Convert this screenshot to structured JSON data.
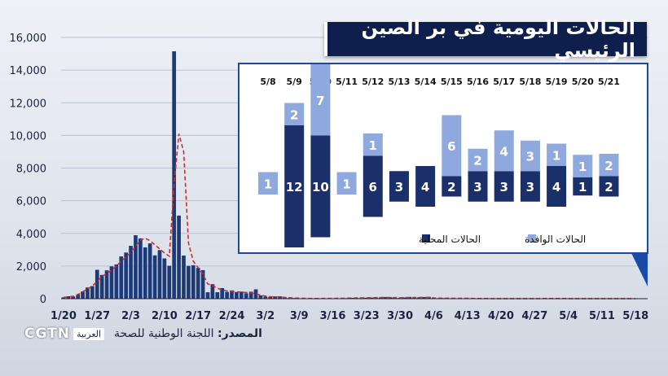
{
  "title": "الحالات اليومية في بر الصين الرئيسي",
  "source_label": "المصدر:",
  "source_text": "اللجنة الوطنية للصحة",
  "logo": {
    "brand": "CGTN",
    "sub": "العربية"
  },
  "colors": {
    "bar": "#1d3a78",
    "trend": "#d42a2a",
    "local": "#1b2f6b",
    "imported": "#8fa8dd",
    "title_bg": "#0f1f4d"
  },
  "chart_data": [
    {
      "type": "bar",
      "ylim": [
        0,
        16000
      ],
      "yticks": [
        0,
        2000,
        4000,
        6000,
        8000,
        10000,
        12000,
        14000,
        16000
      ],
      "ytick_labels": [
        "0",
        "2,000",
        "4,000",
        "6,000",
        "8,000",
        "10,000",
        "12,000",
        "14,000",
        "16,000"
      ],
      "xtick_labels": [
        "1/20",
        "1/27",
        "2/3",
        "2/10",
        "2/17",
        "2/24",
        "3/2",
        "3/9",
        "3/16",
        "3/23",
        "3/30",
        "4/6",
        "4/13",
        "4/20",
        "4/27",
        "5/4",
        "5/11",
        "5/18"
      ],
      "x_start_date": "1/20",
      "values": [
        77,
        149,
        131,
        259,
        444,
        688,
        769,
        1771,
        1459,
        1737,
        1981,
        2099,
        2589,
        2825,
        3235,
        3884,
        3694,
        3143,
        3385,
        2652,
        2973,
        2467,
        2015,
        15152,
        5090,
        2641,
        2008,
        2048,
        1888,
        1749,
        394,
        889,
        397,
        648,
        409,
        508,
        406,
        433,
        327,
        427,
        573,
        202,
        125,
        119,
        139,
        143,
        99,
        44,
        40,
        19,
        24,
        15,
        8,
        11,
        20,
        16,
        21,
        13,
        18,
        34,
        46,
        41,
        62,
        54,
        67,
        79,
        81,
        103,
        86,
        47,
        55,
        75,
        104,
        87,
        89,
        100,
        112,
        30,
        32,
        35,
        28,
        35,
        20,
        17,
        26,
        21,
        18,
        11,
        5,
        8,
        2,
        3,
        22,
        6,
        4,
        12,
        1,
        10,
        6,
        5,
        15,
        15,
        3,
        12,
        8,
        8,
        7,
        8,
        2,
        5,
        9,
        3,
        4,
        5,
        4,
        6,
        1,
        0,
        3,
        2,
        6,
        3
      ],
      "trend": [
        80,
        110,
        150,
        260,
        430,
        600,
        780,
        1050,
        1350,
        1550,
        1750,
        2000,
        2300,
        2550,
        2850,
        3200,
        3600,
        3700,
        3550,
        3300,
        3050,
        2800,
        2600,
        7000,
        10100,
        9000,
        3400,
        2300,
        1900,
        1500,
        900,
        800,
        650,
        520,
        470,
        450,
        420,
        400,
        380,
        350,
        300,
        220,
        160,
        120,
        110,
        100,
        80,
        60,
        45,
        30,
        20,
        15,
        12,
        12,
        14,
        15,
        16,
        18,
        22,
        30,
        40,
        45,
        50,
        55,
        60,
        65,
        70,
        75,
        70,
        65,
        62,
        64,
        70,
        72,
        76,
        80,
        70,
        45,
        35,
        30,
        28,
        25,
        22,
        20,
        18,
        16,
        12,
        10,
        8,
        6,
        5,
        5,
        6,
        6,
        6,
        6,
        6,
        6,
        6,
        7,
        8,
        8,
        8,
        8,
        8,
        7,
        6,
        5,
        5,
        5,
        5,
        4,
        4,
        4,
        4,
        3,
        3,
        3,
        3,
        3
      ]
    },
    {
      "type": "bar",
      "stacked": true,
      "categories": [
        "5/8",
        "5/9",
        "5/10",
        "5/11",
        "5/12",
        "5/13",
        "5/14",
        "5/15",
        "5/16",
        "5/17",
        "5/18",
        "5/19",
        "5/20",
        "5/21"
      ],
      "series": [
        {
          "name": "الحالات المحلية",
          "values": [
            0,
            12,
            10,
            0,
            6,
            3,
            4,
            2,
            3,
            3,
            3,
            4,
            1,
            2
          ]
        },
        {
          "name": "الحالات الوافدة",
          "values": [
            1,
            2,
            7,
            1,
            1,
            0,
            0,
            6,
            2,
            4,
            3,
            1,
            1,
            2
          ]
        }
      ],
      "legend": "bottom"
    }
  ]
}
